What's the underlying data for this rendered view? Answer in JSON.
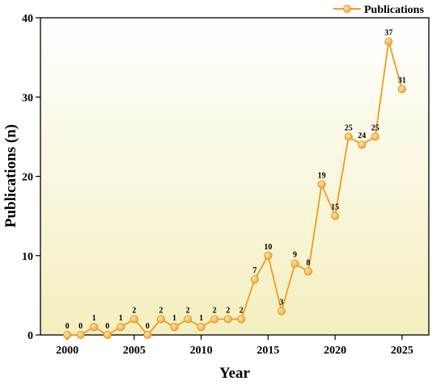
{
  "chart_data": {
    "type": "line",
    "title": "",
    "xlabel": "Year",
    "ylabel": "Publications (n)",
    "xlim": [
      1998,
      2027
    ],
    "ylim": [
      0,
      40
    ],
    "xticks": [
      2000,
      2005,
      2010,
      2015,
      2020,
      2025
    ],
    "yticks": [
      0,
      10,
      20,
      30,
      40
    ],
    "grid": false,
    "legend": "top-right",
    "background": "vertical gradient, white at top to pale yellow at bottom",
    "colors": {
      "line": "#f39a1d",
      "marker": "#f7a42c",
      "marker_highlight": "#fde3b0",
      "bg_top": "#ffffff",
      "bg_bottom": "#f3efbf"
    },
    "series": [
      {
        "name": "Publications",
        "x": [
          2000,
          2001,
          2002,
          2003,
          2004,
          2005,
          2006,
          2007,
          2008,
          2009,
          2010,
          2011,
          2012,
          2013,
          2014,
          2015,
          2016,
          2017,
          2018,
          2019,
          2020,
          2021,
          2022,
          2023,
          2024,
          2025
        ],
        "values": [
          0,
          0,
          1,
          0,
          1,
          2,
          0,
          2,
          1,
          2,
          1,
          2,
          2,
          2,
          7,
          10,
          3,
          9,
          8,
          19,
          15,
          25,
          24,
          25,
          37,
          31
        ]
      }
    ]
  }
}
